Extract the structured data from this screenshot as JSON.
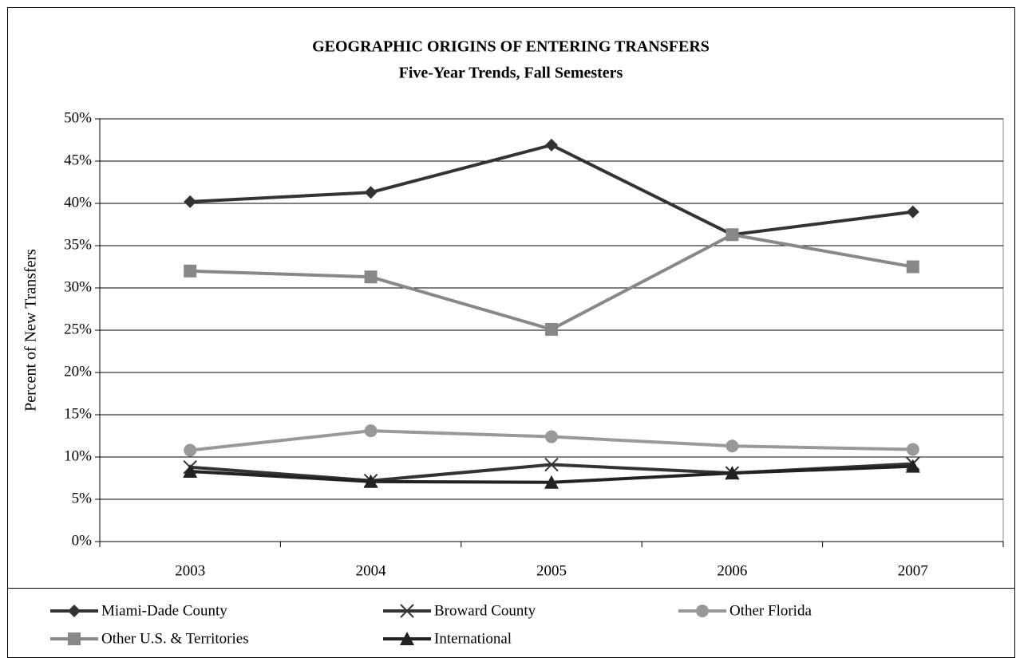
{
  "chart_data": {
    "type": "line",
    "title": "GEOGRAPHIC ORIGINS OF ENTERING TRANSFERS",
    "subtitle": "Five-Year Trends, Fall Semesters",
    "ylabel": "Percent of New Transfers",
    "categories": [
      "2003",
      "2004",
      "2005",
      "2006",
      "2007"
    ],
    "series": [
      {
        "name": "Miami-Dade County",
        "color": "#333333",
        "marker": "diamond",
        "values": [
          40.2,
          41.3,
          46.9,
          36.3,
          39.0
        ]
      },
      {
        "name": "Broward County",
        "color": "#333333",
        "marker": "x",
        "values": [
          8.8,
          7.2,
          9.1,
          8.1,
          9.2
        ]
      },
      {
        "name": "Other Florida",
        "color": "#999999",
        "marker": "circle",
        "values": [
          10.8,
          13.1,
          12.4,
          11.3,
          10.9
        ]
      },
      {
        "name": "Other U.S. & Territories",
        "color": "#888888",
        "marker": "square",
        "values": [
          32.0,
          31.3,
          25.1,
          36.3,
          32.5
        ]
      },
      {
        "name": "International",
        "color": "#222222",
        "marker": "triangle",
        "values": [
          8.3,
          7.1,
          7.0,
          8.1,
          8.9
        ]
      }
    ],
    "ylim": [
      0,
      50
    ],
    "yticks": [
      {
        "value": 0,
        "label": "0%"
      },
      {
        "value": 5,
        "label": "5%"
      },
      {
        "value": 10,
        "label": "10%"
      },
      {
        "value": 15,
        "label": "15%"
      },
      {
        "value": 20,
        "label": "20%"
      },
      {
        "value": 25,
        "label": "25%"
      },
      {
        "value": 30,
        "label": "30%"
      },
      {
        "value": 35,
        "label": "35%"
      },
      {
        "value": 40,
        "label": "40%"
      },
      {
        "value": 45,
        "label": "45%"
      },
      {
        "value": 50,
        "label": "50%"
      }
    ],
    "grid": true,
    "legend": "bottom"
  }
}
